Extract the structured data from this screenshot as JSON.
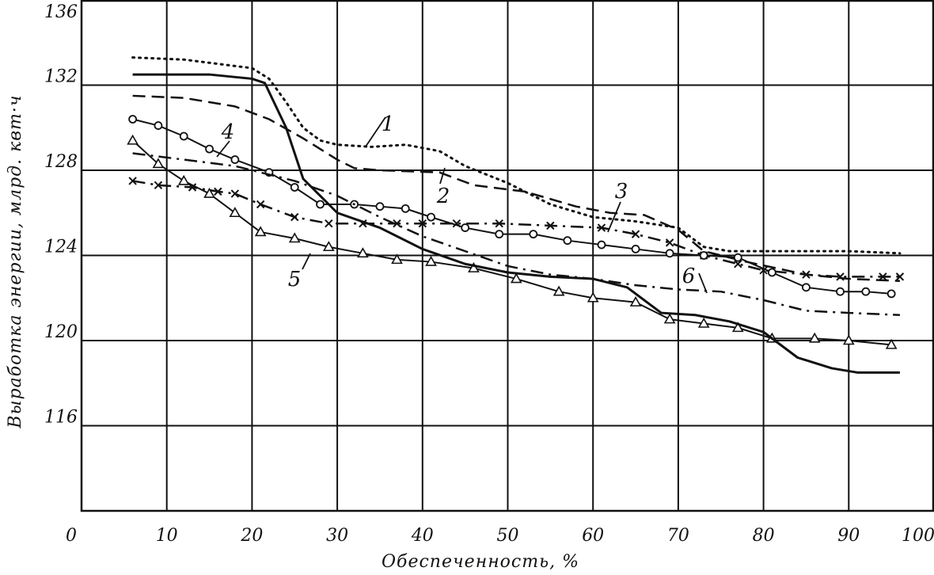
{
  "chart_data": {
    "type": "line",
    "xlabel": "Обеспеченность, %",
    "ylabel": "Выработка энергии, млрд. квт·ч",
    "xlim": [
      0,
      100
    ],
    "ylim": [
      112,
      136
    ],
    "x_ticks": [
      0,
      10,
      20,
      30,
      40,
      50,
      60,
      70,
      80,
      90,
      100
    ],
    "y_ticks": [
      116,
      120,
      124,
      128,
      132,
      136
    ],
    "x_tick_labels": [
      "0",
      "10",
      "20",
      "30",
      "40",
      "50",
      "60",
      "70",
      "80",
      "90",
      "100"
    ],
    "y_tick_labels": [
      "116",
      "120",
      "124",
      "128",
      "132",
      "136"
    ],
    "grid": true,
    "series": [
      {
        "name": "1",
        "style": "dotted",
        "marker": "none",
        "x": [
          6,
          12,
          20,
          22,
          24,
          26,
          28,
          30,
          34,
          38,
          42,
          45,
          50,
          55,
          60,
          65,
          70,
          73,
          76,
          80,
          85,
          90,
          96
        ],
        "y": [
          133.3,
          133.2,
          132.8,
          132.3,
          131.2,
          130.0,
          129.4,
          129.2,
          129.1,
          129.2,
          128.9,
          128.2,
          127.4,
          126.4,
          125.8,
          125.6,
          125.3,
          124.4,
          124.2,
          124.2,
          124.2,
          124.2,
          124.1
        ]
      },
      {
        "name": "2",
        "style": "dashed",
        "marker": "none",
        "x": [
          6,
          12,
          18,
          22,
          26,
          30,
          32,
          35,
          42,
          46,
          52,
          58,
          62,
          66,
          70,
          73,
          78,
          85,
          90,
          96
        ],
        "y": [
          131.5,
          131.4,
          131.0,
          130.4,
          129.5,
          128.5,
          128.1,
          128.0,
          127.9,
          127.3,
          127.0,
          126.3,
          126.0,
          125.9,
          125.2,
          124.2,
          123.7,
          123.1,
          122.9,
          122.8
        ]
      },
      {
        "name": "3",
        "style": "dash-dot",
        "marker": "x",
        "x": [
          6,
          9,
          13,
          16,
          18,
          21,
          25,
          29,
          33,
          37,
          40,
          44,
          49,
          55,
          61,
          65,
          69,
          73,
          77,
          80,
          85,
          89,
          94,
          96
        ],
        "y": [
          127.5,
          127.3,
          127.2,
          127.0,
          126.9,
          126.4,
          125.8,
          125.5,
          125.5,
          125.5,
          125.5,
          125.5,
          125.5,
          125.4,
          125.3,
          125.0,
          124.6,
          124.0,
          123.6,
          123.3,
          123.1,
          123.0,
          123.0,
          123.0
        ]
      },
      {
        "name": "4",
        "style": "solid",
        "marker": "circle",
        "x": [
          6,
          9,
          12,
          15,
          18,
          22,
          25,
          28,
          32,
          35,
          38,
          41,
          45,
          49,
          53,
          57,
          61,
          65,
          69,
          73,
          77,
          81,
          85,
          89,
          92,
          95
        ],
        "y": [
          130.4,
          130.1,
          129.6,
          129.0,
          128.5,
          127.9,
          127.2,
          126.4,
          126.4,
          126.3,
          126.2,
          125.8,
          125.3,
          125.0,
          125.0,
          124.7,
          124.5,
          124.3,
          124.1,
          124.0,
          123.9,
          123.2,
          122.5,
          122.3,
          122.3,
          122.2
        ]
      },
      {
        "name": "5",
        "style": "solid",
        "marker": "triangle",
        "x": [
          6,
          9,
          12,
          15,
          18,
          21,
          25,
          29,
          33,
          37,
          41,
          46,
          51,
          56,
          60,
          65,
          69,
          73,
          77,
          81,
          86,
          90,
          95
        ],
        "y": [
          129.4,
          128.3,
          127.5,
          126.9,
          126.0,
          125.1,
          124.8,
          124.4,
          124.1,
          123.8,
          123.7,
          123.4,
          122.9,
          122.3,
          122.0,
          121.8,
          121.0,
          120.8,
          120.6,
          120.1,
          120.1,
          120.0,
          119.8
        ]
      },
      {
        "name": "6",
        "style": "dash-dot",
        "marker": "none",
        "x": [
          6,
          12,
          18,
          25,
          30,
          35,
          40,
          45,
          50,
          55,
          60,
          65,
          70,
          75,
          80,
          85,
          90,
          96
        ],
        "y": [
          128.8,
          128.5,
          128.2,
          127.5,
          126.8,
          125.8,
          124.9,
          124.2,
          123.5,
          123.1,
          122.9,
          122.6,
          122.4,
          122.3,
          121.9,
          121.4,
          121.3,
          121.2
        ]
      },
      {
        "name": "",
        "style": "solid-thick",
        "marker": "none",
        "x": [
          6,
          10,
          15,
          20,
          21.5,
          24,
          26,
          30,
          35,
          40,
          45,
          50,
          55,
          60,
          64,
          68,
          72,
          76,
          80,
          84,
          88,
          91,
          96
        ],
        "y": [
          132.5,
          132.5,
          132.5,
          132.3,
          132.1,
          130.0,
          127.6,
          126.0,
          125.3,
          124.3,
          123.6,
          123.2,
          123.0,
          122.9,
          122.5,
          121.3,
          121.2,
          120.9,
          120.4,
          119.2,
          118.7,
          118.5,
          118.5
        ]
      }
    ]
  }
}
